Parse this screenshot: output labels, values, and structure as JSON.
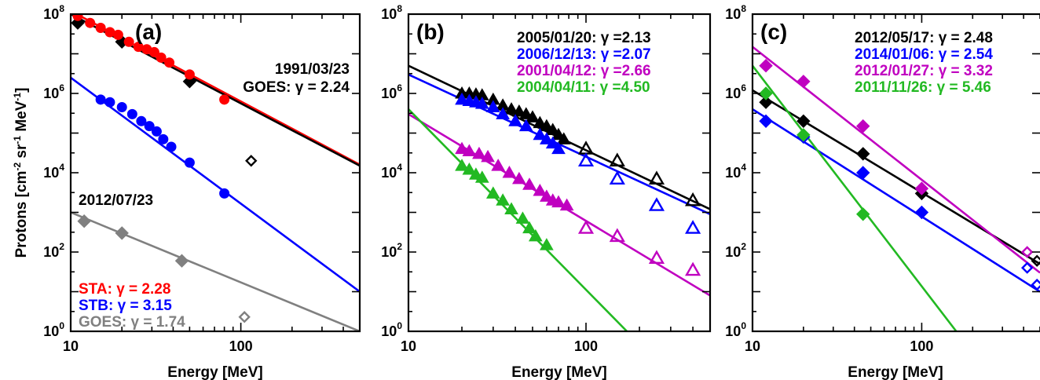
{
  "ylabel_parts": [
    "Protons [cm",
    "-2",
    " sr",
    "-1",
    " MeV",
    "-1",
    "]"
  ],
  "chart_data": [
    {
      "type": "scatter",
      "panel": "(a)",
      "xlabel": "Energy [MeV]",
      "ylabel": "Protons [cm-2 sr-1 MeV-1]",
      "xscale": "log",
      "yscale": "log",
      "xlim": [
        10,
        500
      ],
      "ylim": [
        1,
        100000000
      ],
      "xticks": [
        10,
        100
      ],
      "xtick_labels": [
        "10",
        "100"
      ],
      "yticks": [
        1,
        100,
        10000,
        1000000,
        100000000
      ],
      "ytick_exponents": [
        "0",
        "2",
        "4",
        "6",
        "8"
      ],
      "top_annotation": [
        "1991/03/23",
        "GOES: γ = 2.24"
      ],
      "mid_annotation": "2012/07/23",
      "legend_position": "bottom-left",
      "series": [
        {
          "name": "1991/03/23 GOES",
          "color": "#000000",
          "marker": "diamond",
          "x": [
            11,
            20,
            50
          ],
          "y": [
            60000000,
            20000000,
            2000000
          ],
          "open_x": [
            115
          ],
          "open_y": [
            20000
          ]
        },
        {
          "name": "STA",
          "color": "#ff0000",
          "marker": "circle",
          "x": [
            11,
            13,
            15,
            17,
            19,
            22,
            25,
            28,
            31,
            34,
            38,
            50,
            80
          ],
          "y": [
            90000000,
            60000000,
            45000000,
            35000000,
            30000000,
            20000000,
            15000000,
            13000000,
            11000000,
            8000000,
            6000000,
            3000000,
            700000
          ]
        },
        {
          "name": "STB",
          "color": "#0000ff",
          "marker": "circle",
          "x": [
            15,
            17,
            20,
            23,
            26,
            29,
            32,
            35,
            39,
            50,
            80
          ],
          "y": [
            700000,
            600000,
            450000,
            300000,
            200000,
            150000,
            110000,
            70000,
            45000,
            18000,
            3000
          ]
        },
        {
          "name": "2012/07/23 GOES",
          "color": "#808080",
          "marker": "diamond",
          "x": [
            12,
            20,
            45
          ],
          "y": [
            600,
            300,
            60
          ],
          "open_x": [
            105
          ],
          "open_y": [
            2.3
          ]
        }
      ],
      "fits": [
        {
          "color": "#ff0000",
          "gamma": 2.28,
          "x": [
            10,
            500
          ],
          "y": [
            120000000,
            16000
          ]
        },
        {
          "color": "#000000",
          "gamma": 2.24,
          "x": [
            10,
            500
          ],
          "y": [
            100000000,
            15000
          ]
        },
        {
          "color": "#0000ff",
          "gamma": 3.15,
          "x": [
            10,
            500
          ],
          "y": [
            2500000,
            10
          ]
        },
        {
          "color": "#808080",
          "gamma": 1.74,
          "x": [
            10,
            500
          ],
          "y": [
            1000,
            1
          ]
        }
      ],
      "legend": [
        {
          "label": "STA: γ = 2.28",
          "color": "#ff0000"
        },
        {
          "label": "STB: γ = 3.15",
          "color": "#0000ff"
        },
        {
          "label": "GOES: γ = 1.74",
          "color": "#808080"
        }
      ]
    },
    {
      "type": "scatter",
      "panel": "(b)",
      "xlabel": "Energy [MeV]",
      "xscale": "log",
      "yscale": "log",
      "xlim": [
        10,
        500
      ],
      "ylim": [
        1,
        100000000
      ],
      "xticks": [
        10,
        100
      ],
      "xtick_labels": [
        "10",
        "100"
      ],
      "yticks": [
        1,
        100,
        10000,
        1000000,
        100000000
      ],
      "ytick_exponents": [
        "0",
        "2",
        "4",
        "6",
        "8"
      ],
      "legend_position": "top-right",
      "series": [
        {
          "name": "2005/01/20",
          "color": "#000000",
          "marker": "triangle",
          "x": [
            20,
            22,
            24,
            26,
            30,
            34,
            38,
            42,
            46,
            50,
            55,
            60,
            65,
            70,
            75
          ],
          "y": [
            1000000,
            1000000,
            950000,
            900000,
            700000,
            500000,
            400000,
            350000,
            300000,
            250000,
            180000,
            150000,
            120000,
            90000,
            70000
          ],
          "open_x": [
            100,
            150,
            250,
            400
          ],
          "open_y": [
            40000,
            20000,
            7000,
            2000
          ]
        },
        {
          "name": "2006/12/13",
          "color": "#0000ff",
          "marker": "triangle",
          "x": [
            20,
            22,
            24,
            26,
            30,
            34,
            40,
            46,
            55,
            60,
            65,
            70
          ],
          "y": [
            700000,
            650000,
            600000,
            550000,
            450000,
            300000,
            200000,
            150000,
            90000,
            70000,
            55000,
            40000
          ],
          "open_x": [
            100,
            150,
            250,
            400
          ],
          "open_y": [
            20000,
            7000,
            1500,
            400
          ]
        },
        {
          "name": "2001/04/12",
          "color": "#c000c0",
          "marker": "triangle",
          "x": [
            20,
            22,
            25,
            28,
            32,
            37,
            42,
            48,
            55,
            60,
            65,
            70,
            78
          ],
          "y": [
            40000,
            35000,
            30000,
            25000,
            15000,
            10000,
            7000,
            5000,
            3500,
            2500,
            2000,
            1800,
            1500
          ],
          "open_x": [
            100,
            150,
            250,
            400
          ],
          "open_y": [
            400,
            250,
            70,
            35
          ]
        },
        {
          "name": "2004/04/11",
          "color": "#22b922",
          "marker": "triangle",
          "x": [
            20,
            22,
            24,
            26,
            30,
            34,
            38,
            44,
            48,
            52,
            60
          ],
          "y": [
            15000,
            12000,
            9000,
            7500,
            3000,
            2000,
            1200,
            700,
            400,
            250,
            150
          ]
        }
      ],
      "fits": [
        {
          "color": "#000000",
          "gamma": 2.13,
          "x": [
            10,
            500
          ],
          "y": [
            5000000,
            1200
          ]
        },
        {
          "color": "#0000ff",
          "gamma": 2.07,
          "x": [
            10,
            500
          ],
          "y": [
            3000000,
            900
          ]
        },
        {
          "color": "#c000c0",
          "gamma": 2.66,
          "x": [
            10,
            500
          ],
          "y": [
            300000,
            8
          ]
        },
        {
          "color": "#22b922",
          "gamma": 4.5,
          "x": [
            10,
            170
          ],
          "y": [
            400000,
            1
          ]
        }
      ],
      "legend": [
        {
          "label": "2005/01/20: γ =2.13",
          "color": "#000000"
        },
        {
          "label": "2006/12/13: γ =2.07",
          "color": "#0000ff"
        },
        {
          "label": "2001/04/12: γ =2.66",
          "color": "#c000c0"
        },
        {
          "label": "2004/04/11: γ =4.50",
          "color": "#22b922"
        }
      ]
    },
    {
      "type": "scatter",
      "panel": "(c)",
      "xlabel": "Energy [MeV]",
      "xscale": "log",
      "yscale": "log",
      "xlim": [
        10,
        500
      ],
      "ylim": [
        1,
        100000000
      ],
      "xticks": [
        10,
        100
      ],
      "xtick_labels": [
        "10",
        "100"
      ],
      "yticks": [
        1,
        100,
        10000,
        1000000,
        100000000
      ],
      "ytick_exponents": [
        "0",
        "2",
        "4",
        "6",
        "8"
      ],
      "legend_position": "top-right",
      "series": [
        {
          "name": "2012/05/17",
          "color": "#000000",
          "marker": "diamond",
          "x": [
            12,
            20,
            45,
            100
          ],
          "y": [
            600000,
            200000,
            30000,
            3000
          ],
          "open_x": [
            480
          ],
          "open_y": [
            60
          ]
        },
        {
          "name": "2014/01/06",
          "color": "#0000ff",
          "marker": "diamond",
          "x": [
            12,
            20,
            45,
            100
          ],
          "y": [
            200000,
            80000,
            10000,
            1000
          ],
          "open_x": [
            420,
            480
          ],
          "open_y": [
            40,
            15
          ]
        },
        {
          "name": "2012/01/27",
          "color": "#c000c0",
          "marker": "diamond",
          "x": [
            12,
            20,
            45,
            100
          ],
          "y": [
            5000000,
            2000000,
            150000,
            4000
          ],
          "open_x": [
            420
          ],
          "open_y": [
            100
          ]
        },
        {
          "name": "2011/11/26",
          "color": "#22b922",
          "marker": "diamond",
          "x": [
            12,
            20,
            45
          ],
          "y": [
            1000000,
            90000,
            900
          ]
        }
      ],
      "fits": [
        {
          "color": "#000000",
          "gamma": 2.48,
          "x": [
            10,
            500
          ],
          "y": [
            1200000,
            50
          ]
        },
        {
          "color": "#0000ff",
          "gamma": 2.54,
          "x": [
            10,
            500
          ],
          "y": [
            400000,
            10
          ]
        },
        {
          "color": "#c000c0",
          "gamma": 3.32,
          "x": [
            10,
            500
          ],
          "y": [
            15000000,
            30
          ]
        },
        {
          "color": "#22b922",
          "gamma": 5.46,
          "x": [
            10,
            160
          ],
          "y": [
            5000000,
            1
          ]
        }
      ],
      "legend": [
        {
          "label": "2012/05/17: γ = 2.48",
          "color": "#000000"
        },
        {
          "label": "2014/01/06: γ = 2.54",
          "color": "#0000ff"
        },
        {
          "label": "2012/01/27: γ = 3.32",
          "color": "#c000c0"
        },
        {
          "label": "2011/11/26: γ = 5.46",
          "color": "#22b922"
        }
      ]
    }
  ]
}
